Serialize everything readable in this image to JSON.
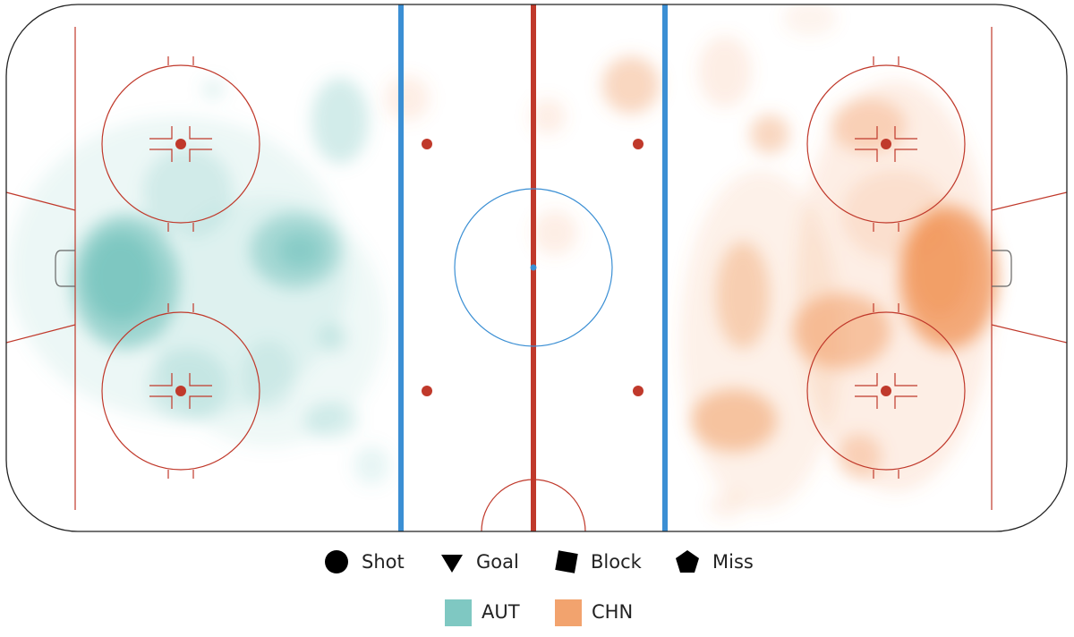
{
  "chart_data": {
    "type": "shot-density",
    "markers": [
      "Shot",
      "Goal",
      "Block",
      "Miss"
    ],
    "series": [
      {
        "name": "AUT",
        "color": "#5fbab3"
      },
      {
        "name": "CHN",
        "color": "#ef8c4a"
      }
    ]
  }
}
